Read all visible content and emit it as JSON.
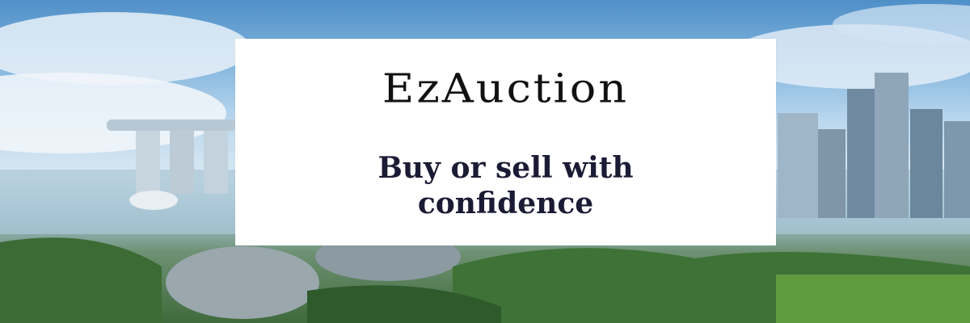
{
  "hero": {
    "brand_name": "EzAuction",
    "tagline": "Buy or sell with confidence"
  },
  "colors": {
    "card_background": "#ffffff",
    "brand_text": "#111111",
    "tagline_text": "#1b1b35"
  }
}
